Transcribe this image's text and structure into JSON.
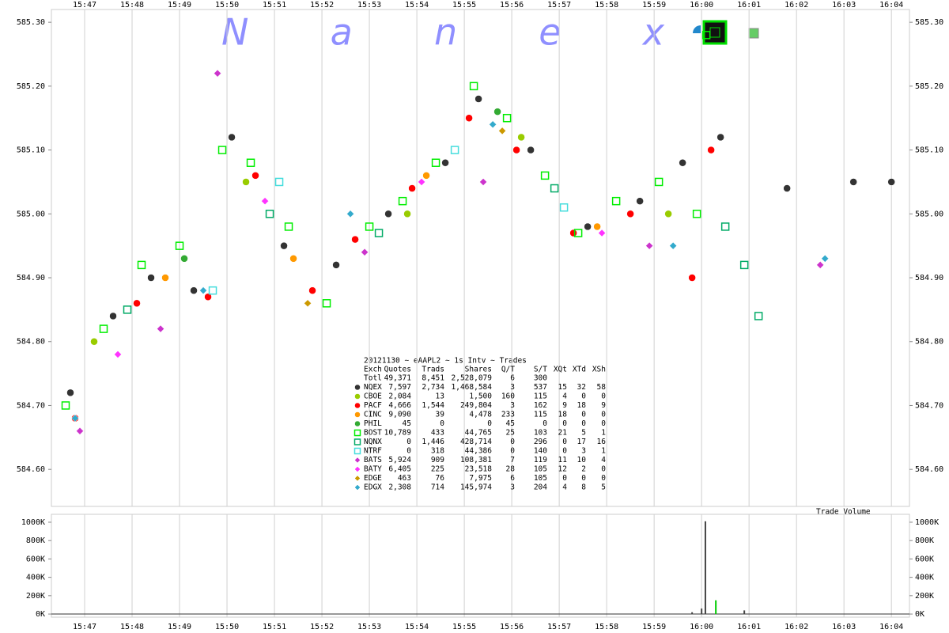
{
  "chart_data": [
    {
      "type": "scatter",
      "watermark": "N a n e x",
      "title": "20121130 ~ eAAPL2 ~ 1s Intv ~ Trades",
      "xlim": [
        946.3,
        964.38
      ],
      "ylim": [
        584.542,
        585.32
      ],
      "xticks": [
        {
          "value": 947,
          "label": "15:47"
        },
        {
          "value": 948,
          "label": "15:48"
        },
        {
          "value": 949,
          "label": "15:49"
        },
        {
          "value": 950,
          "label": "15:50"
        },
        {
          "value": 951,
          "label": "15:51"
        },
        {
          "value": 952,
          "label": "15:52"
        },
        {
          "value": 953,
          "label": "15:53"
        },
        {
          "value": 954,
          "label": "15:54"
        },
        {
          "value": 955,
          "label": "15:55"
        },
        {
          "value": 956,
          "label": "15:56"
        },
        {
          "value": 957,
          "label": "15:57"
        },
        {
          "value": 958,
          "label": "15:58"
        },
        {
          "value": 959,
          "label": "15:59"
        },
        {
          "value": 960,
          "label": "16:00"
        },
        {
          "value": 961,
          "label": "16:01"
        },
        {
          "value": 962,
          "label": "16:02"
        },
        {
          "value": 963,
          "label": "16:03"
        },
        {
          "value": 964,
          "label": "16:04"
        }
      ],
      "yticks": [
        {
          "value": 584.6,
          "label": "584.60"
        },
        {
          "value": 584.7,
          "label": "584.70"
        },
        {
          "value": 584.8,
          "label": "584.80"
        },
        {
          "value": 584.9,
          "label": "584.90"
        },
        {
          "value": 585.0,
          "label": "585.00"
        },
        {
          "value": 585.1,
          "label": "585.10"
        },
        {
          "value": 585.2,
          "label": "585.20"
        },
        {
          "value": 585.3,
          "label": "585.30"
        }
      ],
      "grid": true,
      "series": [
        {
          "color": "#333333",
          "marker": "circle",
          "x": [
            946.7,
            947.6,
            948.4,
            949.3,
            950.1,
            951.2,
            952.3,
            953.4,
            954.6,
            955.3,
            956.4,
            957.6,
            958.7,
            959.6,
            960.4,
            961.8,
            963.2,
            964.0
          ],
          "values": [
            584.72,
            584.84,
            584.9,
            584.88,
            585.12,
            584.95,
            584.92,
            585.0,
            585.08,
            585.18,
            585.1,
            584.98,
            585.02,
            585.08,
            585.12,
            585.04,
            585.05,
            585.05
          ]
        },
        {
          "color": "#99cc00",
          "marker": "circle",
          "x": [
            947.2,
            950.4,
            953.8,
            956.2,
            959.3
          ],
          "values": [
            584.8,
            585.05,
            585.0,
            585.12,
            585.0
          ]
        },
        {
          "color": "#ff0000",
          "marker": "circle",
          "x": [
            946.8,
            948.1,
            949.6,
            950.6,
            951.8,
            952.7,
            953.9,
            955.1,
            956.1,
            957.3,
            958.5,
            959.8,
            960.2
          ],
          "values": [
            584.68,
            584.86,
            584.87,
            585.06,
            584.88,
            584.96,
            585.04,
            585.15,
            585.1,
            584.97,
            585.0,
            584.9,
            585.1
          ]
        },
        {
          "color": "#ff9900",
          "marker": "circle",
          "x": [
            948.7,
            951.4,
            954.2,
            957.8
          ],
          "values": [
            584.9,
            584.93,
            585.06,
            584.98
          ]
        },
        {
          "color": "#33aa33",
          "marker": "circle",
          "x": [
            949.1,
            955.7
          ],
          "values": [
            584.93,
            585.16
          ]
        },
        {
          "color": "#00ee00",
          "marker": "square",
          "x": [
            946.6,
            947.4,
            948.2,
            949.0,
            949.9,
            950.5,
            951.3,
            952.1,
            953.0,
            953.7,
            954.4,
            955.2,
            955.9,
            956.7,
            957.4,
            958.2,
            959.1,
            959.9,
            960.1
          ],
          "values": [
            584.7,
            584.82,
            584.92,
            584.95,
            585.1,
            585.08,
            584.98,
            584.86,
            584.98,
            585.02,
            585.08,
            585.2,
            585.15,
            585.06,
            584.97,
            585.02,
            585.05,
            585.0,
            585.28
          ]
        },
        {
          "color": "#00aa66",
          "marker": "square",
          "x": [
            947.9,
            950.9,
            953.2,
            956.9,
            960.5,
            960.9,
            961.2
          ],
          "values": [
            584.85,
            585.0,
            584.97,
            585.04,
            584.98,
            584.92,
            584.84
          ]
        },
        {
          "color": "#44dddd",
          "marker": "square",
          "x": [
            949.7,
            951.1,
            954.8,
            957.1
          ],
          "values": [
            584.88,
            585.05,
            585.1,
            585.01
          ]
        },
        {
          "color": "#cc33cc",
          "marker": "diamond",
          "x": [
            946.9,
            948.6,
            949.8,
            952.9,
            955.4,
            958.9,
            962.5
          ],
          "values": [
            584.66,
            584.82,
            585.22,
            584.94,
            585.05,
            584.95,
            584.92
          ]
        },
        {
          "color": "#ff33ff",
          "marker": "diamond",
          "x": [
            947.7,
            950.8,
            954.1,
            957.9
          ],
          "values": [
            584.78,
            585.02,
            585.05,
            584.97
          ]
        },
        {
          "color": "#cc9900",
          "marker": "diamond",
          "x": [
            951.7,
            955.8
          ],
          "values": [
            584.86,
            585.13
          ]
        },
        {
          "color": "#33aacc",
          "marker": "diamond",
          "x": [
            946.8,
            949.5,
            952.6,
            955.6,
            959.4,
            962.6
          ],
          "values": [
            584.68,
            584.88,
            585.0,
            585.14,
            584.95,
            584.93
          ]
        }
      ],
      "stats_table": {
        "header": [
          "Exch",
          "Quotes",
          "Trads",
          "Shares",
          "Q/T",
          "S/T",
          "XQt",
          "XTd",
          "XSh"
        ],
        "rows": [
          [
            "Totl",
            "49,371",
            "8,451",
            "2,528,079",
            "6",
            "300"
          ],
          [
            "NQEX",
            "7,597",
            "2,734",
            "1,468,584",
            "3",
            "537",
            "15",
            "32",
            "58"
          ],
          [
            "CBOE",
            "2,084",
            "13",
            "1,500",
            "160",
            "115",
            "4",
            "0",
            "0"
          ],
          [
            "PACF",
            "4,666",
            "1,544",
            "249,804",
            "3",
            "162",
            "9",
            "18",
            "9"
          ],
          [
            "CINC",
            "9,090",
            "39",
            "4,478",
            "233",
            "115",
            "18",
            "0",
            "0"
          ],
          [
            "PHIL",
            "45",
            "0",
            "0",
            "45",
            "0",
            "0",
            "0",
            "0"
          ],
          [
            "BOST",
            "10,789",
            "433",
            "44,765",
            "25",
            "103",
            "21",
            "5",
            "1"
          ],
          [
            "NQNX",
            "0",
            "1,446",
            "428,714",
            "0",
            "296",
            "0",
            "17",
            "16"
          ],
          [
            "NTRF",
            "0",
            "318",
            "44,386",
            "0",
            "140",
            "0",
            "3",
            "1"
          ],
          [
            "BATS",
            "5,924",
            "909",
            "108,381",
            "7",
            "119",
            "11",
            "10",
            "4"
          ],
          [
            "BATY",
            "6,405",
            "225",
            "23,518",
            "28",
            "105",
            "12",
            "2",
            "0"
          ],
          [
            "EDGE",
            "463",
            "76",
            "7,975",
            "6",
            "105",
            "0",
            "0",
            "0"
          ],
          [
            "EDGX",
            "2,308",
            "714",
            "145,974",
            "3",
            "204",
            "4",
            "8",
            "5"
          ]
        ]
      }
    },
    {
      "type": "bar",
      "title": "Trade Volume",
      "xlim": [
        946.3,
        964.38
      ],
      "ylim": [
        -34000,
        1086000
      ],
      "xticks": [
        {
          "value": 947,
          "label": "15:47"
        },
        {
          "value": 948,
          "label": "15:48"
        },
        {
          "value": 949,
          "label": "15:49"
        },
        {
          "value": 950,
          "label": "15:50"
        },
        {
          "value": 951,
          "label": "15:51"
        },
        {
          "value": 952,
          "label": "15:52"
        },
        {
          "value": 953,
          "label": "15:53"
        },
        {
          "value": 954,
          "label": "15:54"
        },
        {
          "value": 955,
          "label": "15:55"
        },
        {
          "value": 956,
          "label": "15:56"
        },
        {
          "value": 957,
          "label": "15:57"
        },
        {
          "value": 958,
          "label": "15:58"
        },
        {
          "value": 959,
          "label": "15:59"
        },
        {
          "value": 960,
          "label": "16:00"
        },
        {
          "value": 961,
          "label": "16:01"
        },
        {
          "value": 962,
          "label": "16:02"
        },
        {
          "value": 963,
          "label": "16:03"
        },
        {
          "value": 964,
          "label": "16:04"
        }
      ],
      "yticks": [
        {
          "value": 0,
          "label": "0K"
        },
        {
          "value": 200000,
          "label": "200K"
        },
        {
          "value": 400000,
          "label": "400K"
        },
        {
          "value": 600000,
          "label": "600K"
        },
        {
          "value": 800000,
          "label": "800K"
        },
        {
          "value": 1000000,
          "label": "1000K"
        }
      ],
      "x": [
        959.8,
        960.0,
        960.08,
        960.3,
        960.9
      ],
      "values": [
        20000,
        60000,
        1010000,
        150000,
        40000
      ],
      "colors": [
        "#444444",
        "#444444",
        "#444444",
        "#00cc00",
        "#444444"
      ]
    }
  ]
}
